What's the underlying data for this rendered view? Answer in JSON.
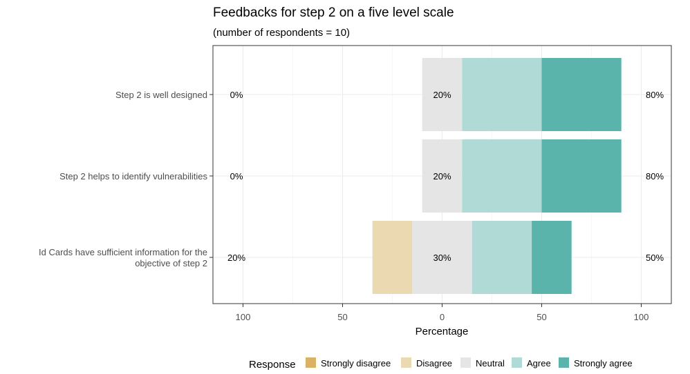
{
  "chart_data": {
    "type": "bar",
    "orientation": "horizontal-diverging",
    "title": "Feedbacks for step 2 on a five level  scale",
    "subtitle": "(number of respondents = 10)",
    "xlabel": "Percentage",
    "xlim": [
      -100,
      100
    ],
    "x_ticks": [
      {
        "value": -100,
        "label": "100"
      },
      {
        "value": -50,
        "label": "50"
      },
      {
        "value": 0,
        "label": "0"
      },
      {
        "value": 50,
        "label": "50"
      },
      {
        "value": 100,
        "label": "100"
      }
    ],
    "grid": true,
    "legend_position": "bottom",
    "legend_title": "Response",
    "levels": [
      {
        "name": "Strongly disagree",
        "color": "#D8B365"
      },
      {
        "name": "Disagree",
        "color": "#EBD9B2"
      },
      {
        "name": "Neutral",
        "color": "#E5E5E5"
      },
      {
        "name": "Agree",
        "color": "#AFDAD6"
      },
      {
        "name": "Strongly agree",
        "color": "#5AB4AC"
      }
    ],
    "categories": [
      {
        "label_lines": [
          "Step 2 is well designed"
        ],
        "values": [
          0,
          0,
          20,
          40,
          40
        ],
        "left_label": "0%",
        "center_label": "20%",
        "right_label": "80%"
      },
      {
        "label_lines": [
          "Step 2 helps to identify vulnerabilities"
        ],
        "values": [
          0,
          0,
          20,
          40,
          40
        ],
        "left_label": "0%",
        "center_label": "20%",
        "right_label": "80%"
      },
      {
        "label_lines": [
          "Id Cards have sufficient information for the",
          "objective of step 2"
        ],
        "values": [
          0,
          20,
          30,
          30,
          20
        ],
        "left_label": "20%",
        "center_label": "30%",
        "right_label": "50%"
      }
    ]
  }
}
